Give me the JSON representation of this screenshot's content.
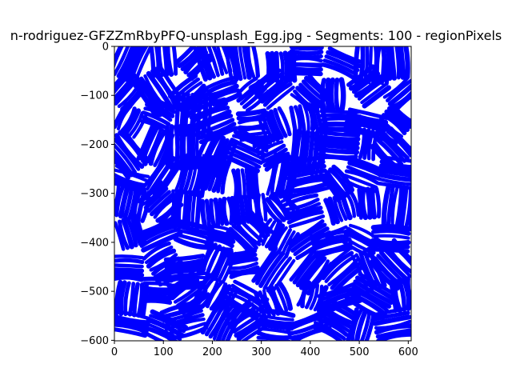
{
  "chart_data": {
    "type": "image",
    "title": "n-rodriguez-GFZZmRbyPFQ-unsplash_Egg.jpg - Segments: 100 - regionPixels",
    "xlim": [
      0,
      606
    ],
    "ylim": [
      -601,
      0
    ],
    "x_ticks": [
      0,
      100,
      200,
      300,
      400,
      500,
      600
    ],
    "y_ticks": [
      0,
      -100,
      -200,
      -300,
      -400,
      -500,
      -600
    ],
    "x_tick_labels": [
      "0",
      "100",
      "200",
      "300",
      "400",
      "500",
      "600"
    ],
    "y_tick_labels": [
      "0",
      "−100",
      "−200",
      "−300",
      "−400",
      "−500",
      "−600"
    ],
    "image_description_colors": {
      "stroke": "#0000ff",
      "background": "#ffffff"
    },
    "grid": false,
    "legend": "none"
  }
}
